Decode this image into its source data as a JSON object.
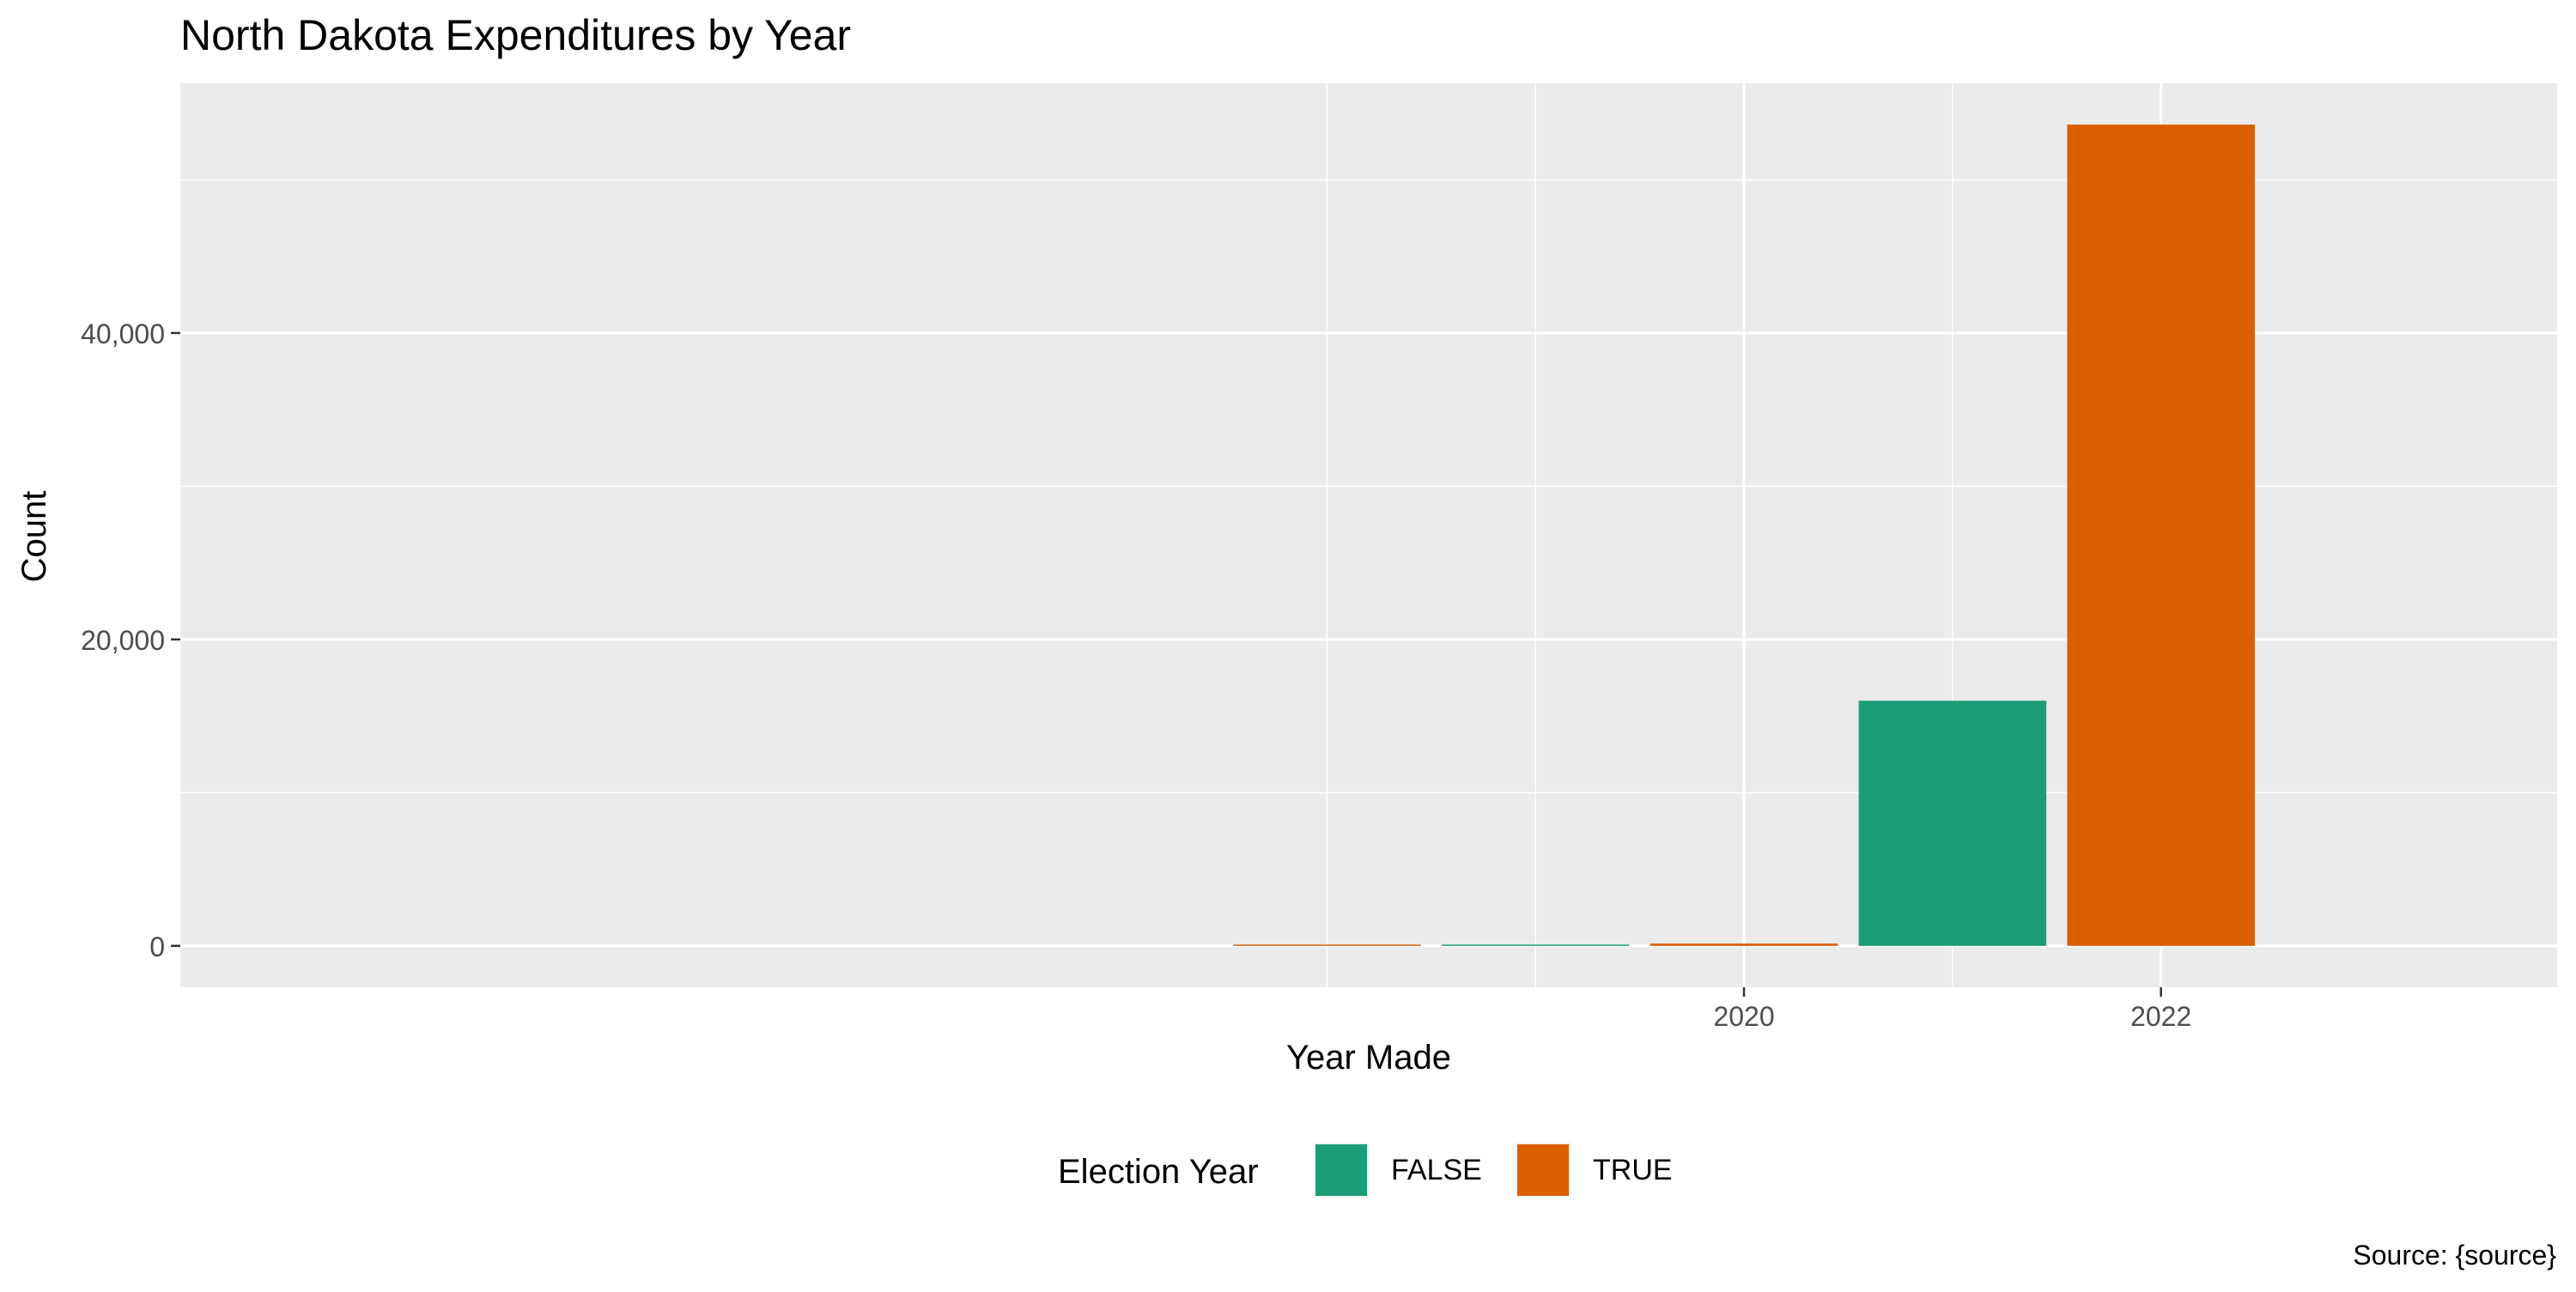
{
  "chart_data": {
    "type": "bar",
    "title": "North Dakota Expenditures by Year",
    "xlabel": "Year Made",
    "ylabel": "Count",
    "caption": "Source: {source}",
    "grid": true,
    "legend_position": "bottom",
    "xlim": [
      2012.5,
      2023.9
    ],
    "ylim": [
      -2700,
      56300
    ],
    "x_ticks": [
      {
        "value": 2020,
        "label": "2020"
      },
      {
        "value": 2022,
        "label": "2022"
      }
    ],
    "x_minor_grid": [
      2018,
      2019,
      2021
    ],
    "y_ticks": [
      {
        "value": 0,
        "label": "0"
      },
      {
        "value": 20000,
        "label": "20,000"
      },
      {
        "value": 40000,
        "label": "40,000"
      }
    ],
    "y_minor_grid": [
      10000,
      30000,
      50000
    ],
    "legend": {
      "title": "Election Year",
      "entries": [
        {
          "label": "FALSE",
          "color": "#1B9E77"
        },
        {
          "label": "TRUE",
          "color": "#D95F02"
        }
      ]
    },
    "bars": [
      {
        "year": 2018,
        "value": 40,
        "election_year": "TRUE"
      },
      {
        "year": 2019,
        "value": 10,
        "election_year": "FALSE"
      },
      {
        "year": 2020,
        "value": 150,
        "election_year": "TRUE"
      },
      {
        "year": 2021,
        "value": 16000,
        "election_year": "FALSE"
      },
      {
        "year": 2022,
        "value": 53600,
        "election_year": "TRUE"
      }
    ],
    "colors": {
      "FALSE": "#1B9E77",
      "TRUE": "#D95F02"
    }
  }
}
